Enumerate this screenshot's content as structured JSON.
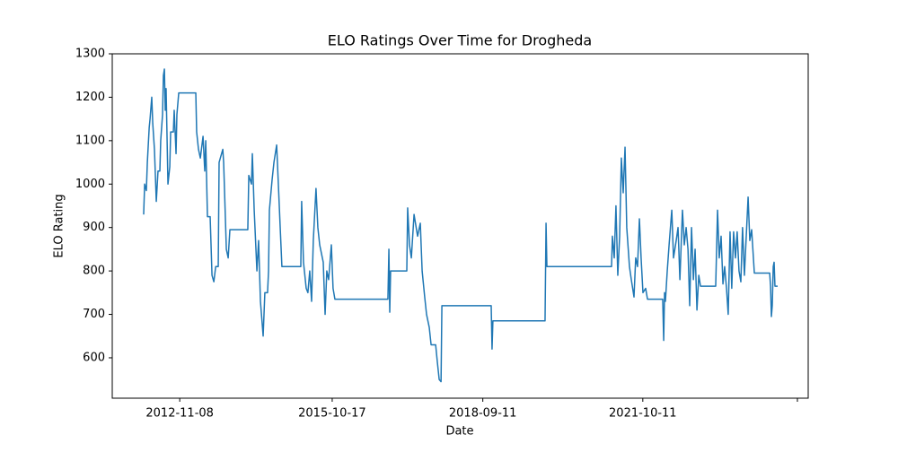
{
  "chart_data": {
    "type": "line",
    "title": "ELO Ratings Over Time for Drogheda",
    "x_label": "Date",
    "y_label": "ELO Rating",
    "color": "#1f77b4",
    "xlim": [
      "2011-07-22",
      "2024-12-18"
    ],
    "xticks": [
      "2012-11-08",
      "2015-10-17",
      "2018-09-11",
      "2021-10-11",
      {
        "value": "2024-10-03",
        "label": null
      }
    ],
    "ylim": [
      507,
      1300
    ],
    "yticks": [
      600,
      700,
      800,
      900,
      1000,
      1100,
      1200,
      1300
    ],
    "grid": false,
    "x": [
      "2012-02-28",
      "2012-03-06",
      "2012-03-18",
      "2012-03-25",
      "2012-04-07",
      "2012-04-13",
      "2012-04-25",
      "2012-05-02",
      "2012-05-14",
      "2012-05-27",
      "2012-06-08",
      "2012-06-21",
      "2012-06-27",
      "2012-07-10",
      "2012-07-16",
      "2012-07-23",
      "2012-07-29",
      "2012-08-04",
      "2012-08-17",
      "2012-08-30",
      "2012-09-05",
      "2012-09-24",
      "2012-09-30",
      "2012-10-13",
      "2012-10-19",
      "2012-11-01",
      "2013-03-01",
      "2013-03-07",
      "2013-03-20",
      "2013-04-02",
      "2013-04-21",
      "2013-05-03",
      "2013-05-10",
      "2013-05-22",
      "2013-06-10",
      "2013-06-23",
      "2013-07-06",
      "2013-07-19",
      "2013-08-06",
      "2013-08-12",
      "2013-09-07",
      "2013-09-13",
      "2013-10-02",
      "2013-10-15",
      "2013-10-27",
      "2014-03-02",
      "2014-03-09",
      "2014-03-28",
      "2014-04-03",
      "2014-04-16",
      "2014-05-05",
      "2014-05-17",
      "2014-05-30",
      "2014-06-18",
      "2014-06-30",
      "2014-07-19",
      "2014-07-26",
      "2014-08-01",
      "2014-08-20",
      "2014-09-02",
      "2014-09-21",
      "2014-10-03",
      "2014-10-16",
      "2014-10-28",
      "2015-03-10",
      "2015-03-16",
      "2015-03-29",
      "2015-04-17",
      "2015-04-29",
      "2015-05-12",
      "2015-05-25",
      "2015-06-06",
      "2015-06-25",
      "2015-07-08",
      "2015-07-21",
      "2015-08-15",
      "2015-08-28",
      "2015-09-09",
      "2015-09-22",
      "2015-10-11",
      "2015-10-23",
      "2015-11-05",
      "2016-11-12",
      "2016-11-19",
      "2016-11-25",
      "2016-12-01",
      "2017-03-25",
      "2017-03-31",
      "2017-04-13",
      "2017-04-26",
      "2017-05-15",
      "2017-06-09",
      "2017-06-28",
      "2017-07-11",
      "2017-07-29",
      "2017-08-11",
      "2017-08-30",
      "2017-09-12",
      "2017-10-14",
      "2017-10-26",
      "2017-11-08",
      "2017-11-21",
      "2017-11-27",
      "2018-11-09",
      "2018-11-15",
      "2018-11-21",
      "2019-11-23",
      "2019-11-30",
      "2019-12-06",
      "2021-03-05",
      "2021-03-11",
      "2021-03-24",
      "2021-04-05",
      "2021-04-18",
      "2021-05-01",
      "2021-05-13",
      "2021-05-26",
      "2021-06-08",
      "2021-06-20",
      "2021-07-09",
      "2021-07-22",
      "2021-08-10",
      "2021-08-22",
      "2021-09-04",
      "2021-09-17",
      "2021-09-29",
      "2021-10-12",
      "2021-10-31",
      "2021-11-13",
      "2022-02-28",
      "2022-03-07",
      "2022-03-13",
      "2022-03-19",
      "2022-04-01",
      "2022-04-14",
      "2022-05-03",
      "2022-05-15",
      "2022-06-03",
      "2022-06-16",
      "2022-06-29",
      "2022-07-17",
      "2022-07-30",
      "2022-08-12",
      "2022-08-25",
      "2022-09-06",
      "2022-09-19",
      "2022-10-02",
      "2022-10-14",
      "2022-10-27",
      "2022-11-09",
      "2022-11-21",
      "2023-03-08",
      "2023-03-21",
      "2023-04-02",
      "2023-04-15",
      "2023-04-28",
      "2023-05-10",
      "2023-05-23",
      "2023-06-04",
      "2023-06-17",
      "2023-06-29",
      "2023-07-12",
      "2023-07-25",
      "2023-08-06",
      "2023-08-19",
      "2023-09-01",
      "2023-09-13",
      "2023-09-26",
      "2023-10-22",
      "2023-11-03",
      "2023-11-16",
      "2023-12-05",
      "2024-03-22",
      "2024-03-28",
      "2024-04-03",
      "2024-04-09",
      "2024-04-16",
      "2024-04-22",
      "2024-04-28",
      "2024-05-17"
    ],
    "values": [
      930,
      1000,
      985,
      1050,
      1130,
      1150,
      1200,
      1140,
      1080,
      960,
      1030,
      1030,
      1100,
      1160,
      1250,
      1265,
      1170,
      1220,
      1000,
      1040,
      1120,
      1120,
      1170,
      1070,
      1160,
      1210,
      1210,
      1120,
      1080,
      1060,
      1110,
      1030,
      1100,
      925,
      925,
      790,
      775,
      810,
      810,
      1050,
      1080,
      1050,
      850,
      830,
      895,
      895,
      1020,
      1000,
      1070,
      940,
      800,
      870,
      730,
      650,
      750,
      750,
      800,
      940,
      1010,
      1050,
      1090,
      1000,
      900,
      810,
      810,
      960,
      820,
      760,
      750,
      800,
      730,
      870,
      990,
      900,
      860,
      820,
      700,
      800,
      780,
      860,
      760,
      735,
      735,
      850,
      705,
      800,
      800,
      945,
      860,
      830,
      930,
      880,
      910,
      800,
      740,
      700,
      670,
      630,
      630,
      590,
      550,
      545,
      720,
      720,
      620,
      685,
      685,
      910,
      810,
      810,
      880,
      830,
      950,
      790,
      880,
      1060,
      980,
      1085,
      900,
      810,
      780,
      740,
      830,
      810,
      920,
      830,
      750,
      760,
      735,
      735,
      640,
      750,
      730,
      800,
      860,
      940,
      830,
      870,
      900,
      780,
      940,
      860,
      900,
      850,
      720,
      900,
      780,
      850,
      710,
      790,
      765,
      765,
      940,
      830,
      880,
      770,
      810,
      760,
      700,
      890,
      760,
      890,
      830,
      890,
      800,
      775,
      900,
      790,
      970,
      870,
      895,
      795,
      795,
      765,
      695,
      720,
      810,
      820,
      765,
      765
    ]
  }
}
